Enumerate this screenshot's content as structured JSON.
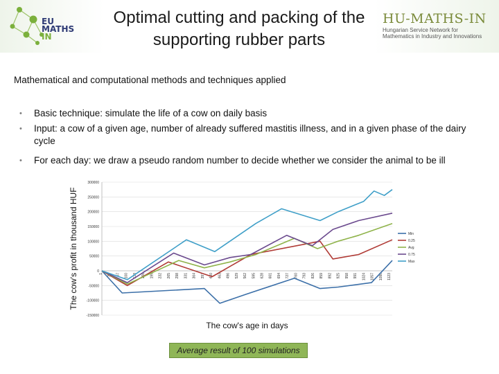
{
  "header": {
    "left_logo": {
      "line1": "EU",
      "line2": "MATHS",
      "line3": "IN"
    },
    "title": "Optimal cutting and packing of the supporting rubber parts",
    "right_logo": {
      "brand": "HU-MATHS-IN",
      "sub1": "Hungarian Service Network for",
      "sub2": "Mathematics in Industry and Innovations"
    }
  },
  "section_heading": "Mathematical and computational methods and techniques applied",
  "bullets": [
    "Basic technique: simulate the life of a cow on daily basis",
    "Input: a cow of a given age, number of already suffered mastitis illness, and in a given phase of the dairy cycle",
    "For each day: we draw a pseudo random number to decide whether we consider the animal to be ill"
  ],
  "caption": "Average result of 100 simulations",
  "colors": {
    "Min": "#3b6fa8",
    "0.25": "#b03a35",
    "Avg": "#8fb34a",
    "0.75": "#6b4a8e",
    "Max": "#3f9fc8"
  },
  "chart_data": {
    "type": "line",
    "title": "",
    "xlabel": "The cow's age in days",
    "ylabel": "The cow's profit in thousand HUF",
    "ylim": [
      -150000,
      300000
    ],
    "yticks": [
      -150000,
      -100000,
      -50000,
      0,
      50000,
      100000,
      150000,
      200000,
      250000,
      300000
    ],
    "yticklabels": [
      "-150000",
      "-100000",
      "-50000",
      "0",
      "50000",
      "100000",
      "150000",
      "200000",
      "250000",
      "300000"
    ],
    "xlim": [
      1,
      1131
    ],
    "xticklabels": [
      "1",
      "34",
      "67",
      "100",
      "133",
      "166",
      "199",
      "232",
      "265",
      "298",
      "331",
      "364",
      "397",
      "430",
      "463",
      "496",
      "529",
      "562",
      "595",
      "628",
      "661",
      "694",
      "727",
      "760",
      "793",
      "826",
      "859",
      "892",
      "925",
      "958",
      "991",
      "1024",
      "1057",
      "1090",
      "1123"
    ],
    "legend_position": "right",
    "series": [
      {
        "name": "Min",
        "x": [
          1,
          80,
          400,
          460,
          560,
          750,
          850,
          920,
          1050,
          1131
        ],
        "y": [
          0,
          -75000,
          -60000,
          -110000,
          -80000,
          -25000,
          -60000,
          -55000,
          -40000,
          35000
        ]
      },
      {
        "name": "0.25",
        "x": [
          1,
          100,
          260,
          430,
          500,
          580,
          850,
          900,
          1000,
          1131
        ],
        "y": [
          0,
          -50000,
          30000,
          -20000,
          15000,
          55000,
          100000,
          40000,
          55000,
          105000
        ]
      },
      {
        "name": "Avg",
        "x": [
          1,
          100,
          300,
          400,
          500,
          600,
          750,
          840,
          920,
          1000,
          1131
        ],
        "y": [
          0,
          -45000,
          35000,
          10000,
          30000,
          55000,
          110000,
          75000,
          100000,
          120000,
          160000
        ]
      },
      {
        "name": "0.75",
        "x": [
          1,
          100,
          280,
          400,
          500,
          580,
          720,
          820,
          900,
          1000,
          1131
        ],
        "y": [
          0,
          -40000,
          60000,
          20000,
          45000,
          55000,
          120000,
          85000,
          140000,
          170000,
          195000
        ]
      },
      {
        "name": "Max",
        "x": [
          1,
          100,
          330,
          440,
          600,
          700,
          850,
          920,
          1020,
          1060,
          1100,
          1131
        ],
        "y": [
          0,
          -30000,
          105000,
          65000,
          160000,
          210000,
          170000,
          200000,
          235000,
          270000,
          255000,
          275000
        ]
      }
    ]
  }
}
